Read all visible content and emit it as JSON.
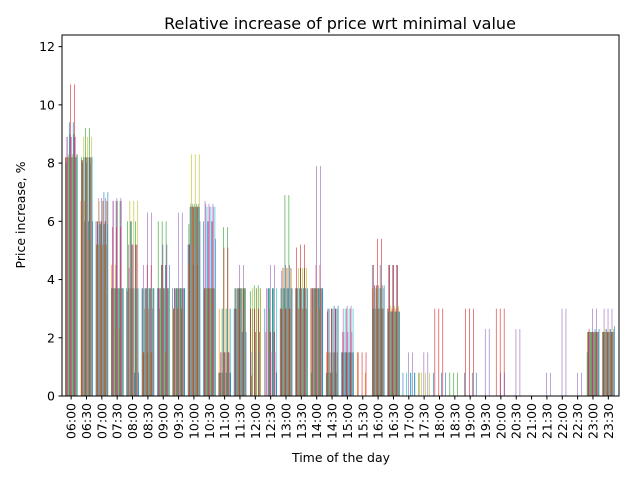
{
  "chart_data": {
    "type": "bar",
    "title": "Relative increase of price wrt minimal value",
    "xlabel": "Time of the day",
    "ylabel": "Price increase, %",
    "ylim": [
      0,
      12.4
    ],
    "y_ticks": [
      "0",
      "2",
      "4",
      "6",
      "8",
      "10",
      "12"
    ],
    "grid": false,
    "legend": "none",
    "categories": [
      "06:00",
      "06:30",
      "07:00",
      "07:30",
      "08:00",
      "08:30",
      "09:00",
      "09:30",
      "10:00",
      "10:30",
      "11:00",
      "11:30",
      "12:00",
      "12:30",
      "13:00",
      "13:30",
      "14:00",
      "14:30",
      "15:00",
      "15:30",
      "16:00",
      "16:30",
      "17:00",
      "17:30",
      "18:00",
      "18:30",
      "19:00",
      "19:30",
      "20:00",
      "20:30",
      "21:00",
      "21:30",
      "22:00",
      "22:30",
      "23:00",
      "23:30"
    ],
    "series": [
      {
        "color": "#1f77b4",
        "values": [
          8.2,
          0,
          6.0,
          3.7,
          3.7,
          3.7,
          3.7,
          3.7,
          5.2,
          6.0,
          0.8,
          3.0,
          0,
          3.0,
          3.0,
          3.7,
          3.7,
          0.8,
          1.5,
          0,
          4.5,
          3.0,
          0.8,
          0,
          0.8,
          0,
          0.8,
          0,
          0,
          0,
          0,
          0,
          0,
          0,
          1.5,
          2.2
        ]
      },
      {
        "color": "#ff7f0e",
        "values": [
          8.2,
          6.7,
          5.2,
          4.5,
          0,
          1.5,
          0,
          3.0,
          4.5,
          0,
          3.0,
          0,
          0,
          0,
          3.0,
          3.7,
          3.7,
          1.5,
          0,
          1.5,
          3.7,
          3.0,
          0,
          0.8,
          0,
          0,
          0,
          0,
          0,
          0,
          0,
          0,
          0,
          0,
          2.2,
          2.2
        ]
      },
      {
        "color": "#2ca02c",
        "values": [
          8.0,
          8.2,
          5.2,
          3.7,
          6.0,
          3.7,
          6.0,
          3.0,
          5.9,
          3.7,
          0.8,
          3.7,
          3.6,
          0,
          3.7,
          3.7,
          0.8,
          0.8,
          1.5,
          0,
          3.0,
          2.9,
          0,
          0.8,
          0,
          0.8,
          0,
          0,
          0,
          0,
          0,
          0,
          0,
          0,
          2.2,
          2.2
        ]
      },
      {
        "color": "#d62728",
        "values": [
          8.2,
          8.1,
          6.0,
          5.8,
          3.6,
          1.5,
          3.7,
          3.0,
          5.2,
          3.7,
          0.8,
          3.0,
          3.0,
          2.2,
          3.0,
          5.1,
          3.7,
          2.9,
          2.2,
          1.5,
          4.5,
          4.5,
          0,
          0,
          3.0,
          0,
          3.0,
          0,
          3.0,
          0,
          0,
          0,
          0,
          0,
          2.2,
          2.2
        ]
      },
      {
        "color": "#9467bd",
        "values": [
          8.9,
          8.0,
          5.9,
          6.7,
          5.2,
          4.5,
          3.7,
          3.7,
          5.2,
          6.7,
          1.5,
          3.7,
          1.5,
          3.7,
          4.3,
          3.7,
          3.7,
          3.0,
          3.0,
          0,
          3.0,
          4.5,
          0,
          0,
          0,
          0,
          0,
          0,
          0,
          0,
          0,
          0,
          0,
          0,
          2.2,
          3.0
        ]
      },
      {
        "color": "#8c564b",
        "values": [
          8.2,
          8.1,
          6.0,
          3.7,
          3.7,
          1.5,
          3.0,
          3.7,
          6.5,
          3.7,
          0.8,
          3.7,
          0.7,
          0,
          3.0,
          3.7,
          3.7,
          3.0,
          1.5,
          0,
          3.8,
          4.5,
          0,
          0,
          0,
          0,
          0,
          0,
          0,
          0,
          0,
          0,
          0,
          0,
          2.3,
          2.2
        ]
      },
      {
        "color": "#e377c2",
        "values": [
          8.9,
          6.7,
          6.8,
          6.7,
          4.4,
          3.7,
          3.7,
          3.6,
          5.2,
          6.6,
          1.5,
          3.0,
          0,
          3.7,
          4.4,
          3.0,
          3.7,
          1.5,
          2.2,
          0,
          3.8,
          2.9,
          0,
          0,
          0,
          0,
          0,
          0,
          0,
          0,
          0,
          0,
          0,
          0,
          2.2,
          2.2
        ]
      },
      {
        "color": "#7f7f7f",
        "values": [
          8.2,
          8.2,
          5.2,
          3.7,
          3.7,
          3.0,
          3.7,
          3.7,
          6.6,
          3.7,
          0.8,
          3.0,
          3.0,
          0,
          3.7,
          3.0,
          3.7,
          0.8,
          1.5,
          0,
          3.0,
          2.9,
          0,
          0,
          0,
          0,
          0,
          0,
          0,
          0,
          0,
          0,
          0,
          0,
          2.2,
          2.2
        ]
      },
      {
        "color": "#bcbd22",
        "values": [
          8.3,
          8.9,
          6.7,
          3.7,
          6.7,
          3.7,
          3.7,
          3.0,
          8.3,
          3.7,
          3.0,
          3.7,
          3.7,
          0,
          4.4,
          4.4,
          3.7,
          1.5,
          0,
          0,
          3.0,
          3.1,
          0,
          0.8,
          0,
          0,
          0,
          0,
          0,
          0,
          0,
          0,
          0,
          0,
          2.2,
          2.3
        ]
      },
      {
        "color": "#17becf",
        "values": [
          8.2,
          8.2,
          5.9,
          3.7,
          3.7,
          3.7,
          3.7,
          3.7,
          6.5,
          6.5,
          3.0,
          3.7,
          0,
          3.7,
          3.7,
          3.7,
          3.7,
          3.0,
          3.0,
          0,
          3.7,
          2.9,
          0.8,
          0,
          0,
          0,
          0,
          0,
          0,
          0,
          0,
          0,
          0,
          0,
          2.2,
          2.2
        ]
      },
      {
        "color": "#1f77b4",
        "values": [
          9.4,
          6.0,
          6.0,
          3.7,
          6.0,
          3.7,
          4.5,
          3.7,
          6.5,
          6.0,
          0.8,
          3.7,
          0,
          3.7,
          3.7,
          3.7,
          3.7,
          0.8,
          1.5,
          0,
          3.8,
          2.9,
          0,
          0,
          0,
          0,
          0,
          0,
          0,
          0,
          0,
          0,
          0,
          0,
          2.2,
          2.3
        ]
      },
      {
        "color": "#ff7f0e",
        "values": [
          8.2,
          6.7,
          5.2,
          4.5,
          3.7,
          3.0,
          4.5,
          3.7,
          6.5,
          3.7,
          1.5,
          3.0,
          0,
          3.0,
          3.0,
          3.0,
          3.7,
          0.8,
          0,
          0,
          3.8,
          3.0,
          0,
          0,
          0,
          0,
          0,
          0,
          0,
          0,
          0,
          0,
          0,
          0,
          2.2,
          2.2
        ]
      },
      {
        "color": "#2ca02c",
        "values": [
          9.0,
          9.2,
          5.9,
          6.7,
          6.0,
          3.7,
          6.0,
          3.7,
          6.6,
          3.7,
          5.8,
          3.7,
          3.8,
          3.7,
          6.9,
          4.4,
          3.7,
          1.5,
          1.5,
          0,
          3.7,
          2.9,
          0,
          0,
          0,
          0.8,
          0,
          0,
          0,
          0,
          0,
          0,
          0,
          0,
          2.2,
          2.2
        ]
      },
      {
        "color": "#d62728",
        "values": [
          10.7,
          8.2,
          6.0,
          5.8,
          5.2,
          4.5,
          4.5,
          3.0,
          6.5,
          6.0,
          5.1,
          3.7,
          3.0,
          2.2,
          3.0,
          5.2,
          4.5,
          3.0,
          3.0,
          1.5,
          5.4,
          4.5,
          0,
          0,
          3.0,
          0,
          3.0,
          0,
          3.0,
          0,
          0,
          0,
          0,
          0,
          2.2,
          2.2
        ]
      },
      {
        "color": "#9467bd",
        "values": [
          8.9,
          8.0,
          6.8,
          6.8,
          5.2,
          6.3,
          5.2,
          6.3,
          4.5,
          6.6,
          1.5,
          4.5,
          1.5,
          4.5,
          4.5,
          3.7,
          7.9,
          3.0,
          3.1,
          0,
          3.0,
          4.5,
          1.5,
          1.5,
          0,
          0,
          0,
          2.3,
          0.8,
          2.3,
          0,
          0.8,
          3.0,
          0.8,
          3.0,
          3.0
        ]
      },
      {
        "color": "#8c564b",
        "values": [
          8.2,
          8.2,
          6.0,
          3.7,
          3.7,
          1.5,
          3.7,
          3.7,
          6.5,
          3.7,
          1.5,
          3.7,
          2.2,
          2.2,
          3.0,
          3.7,
          3.7,
          3.0,
          1.5,
          0,
          3.8,
          4.5,
          0,
          0,
          0,
          0,
          0,
          0,
          0,
          0,
          0,
          0,
          0,
          0,
          2.2,
          2.2
        ]
      },
      {
        "color": "#e377c2",
        "values": [
          8.9,
          6.7,
          6.7,
          6.7,
          5.2,
          3.0,
          3.7,
          3.7,
          5.2,
          6.5,
          1.5,
          3.0,
          0,
          1.5,
          4.4,
          3.0,
          3.7,
          1.5,
          2.2,
          0,
          3.0,
          3.0,
          0,
          0,
          0,
          0,
          0,
          0,
          0,
          0,
          0,
          0,
          0,
          0,
          2.2,
          2.2
        ]
      },
      {
        "color": "#7f7f7f",
        "values": [
          8.2,
          8.2,
          5.2,
          3.7,
          3.7,
          3.7,
          3.7,
          3.7,
          6.6,
          3.7,
          0.8,
          3.7,
          3.7,
          0,
          3.7,
          3.0,
          3.7,
          0.8,
          1.5,
          0,
          3.0,
          2.9,
          0,
          0,
          0,
          0,
          0,
          0,
          0,
          0,
          0,
          0,
          0,
          0,
          2.2,
          2.2
        ]
      },
      {
        "color": "#bcbd22",
        "values": [
          8.3,
          8.9,
          6.7,
          3.7,
          6.7,
          3.7,
          3.7,
          3.0,
          8.3,
          3.7,
          3.0,
          3.7,
          3.7,
          0,
          4.4,
          4.4,
          3.7,
          1.5,
          0,
          0,
          3.0,
          3.1,
          0,
          0.8,
          0,
          0,
          0,
          0,
          0,
          0,
          0,
          0,
          0,
          0,
          2.2,
          2.3
        ]
      },
      {
        "color": "#17becf",
        "values": [
          8.2,
          8.2,
          5.9,
          3.7,
          3.7,
          3.7,
          3.7,
          3.7,
          6.5,
          6.5,
          3.0,
          3.7,
          0,
          3.7,
          3.7,
          3.7,
          3.7,
          3.0,
          3.0,
          0,
          3.7,
          2.9,
          0.8,
          0,
          0,
          0,
          0,
          0,
          0,
          0,
          0,
          0,
          0,
          0,
          2.2,
          2.2
        ]
      },
      {
        "color": "#1f77b4",
        "values": [
          9.4,
          6.0,
          7.0,
          3.7,
          0.8,
          3.7,
          4.5,
          3.7,
          6.5,
          6.0,
          0.8,
          2.2,
          0,
          3.7,
          3.7,
          3.7,
          3.7,
          3.1,
          1.5,
          0,
          4.5,
          2.9,
          0.8,
          0,
          0.8,
          0,
          0.8,
          0,
          0,
          0,
          0,
          0,
          0,
          0,
          2.3,
          2.3
        ]
      },
      {
        "color": "#ff7f0e",
        "values": [
          8.2,
          5.4,
          5.2,
          2.3,
          0,
          1.5,
          1.5,
          3.7,
          4.5,
          3.7,
          1.5,
          0,
          0,
          0,
          3.0,
          3.0,
          3.0,
          0,
          0,
          0.8,
          3.0,
          3.0,
          0,
          0,
          0,
          0,
          0,
          0,
          0,
          0,
          0,
          0,
          0,
          0,
          2.2,
          2.2
        ]
      },
      {
        "color": "#2ca02c",
        "values": [
          9.0,
          9.2,
          5.9,
          6.7,
          6.0,
          3.7,
          6.0,
          3.7,
          6.6,
          3.7,
          5.8,
          3.7,
          3.8,
          3.7,
          6.9,
          4.4,
          3.7,
          1.5,
          1.5,
          0,
          3.7,
          2.9,
          0,
          0,
          0,
          0.8,
          0,
          0,
          0,
          0,
          0,
          0,
          0,
          0,
          2.2,
          2.2
        ]
      },
      {
        "color": "#d62728",
        "values": [
          10.7,
          8.2,
          6.0,
          5.8,
          5.2,
          4.5,
          4.5,
          3.0,
          6.5,
          6.0,
          5.1,
          3.7,
          3.0,
          2.2,
          3.0,
          5.2,
          4.5,
          3.0,
          3.0,
          1.5,
          5.4,
          4.5,
          0,
          0,
          3.0,
          0,
          3.0,
          0,
          3.0,
          0,
          0,
          0,
          0,
          0,
          2.2,
          2.2
        ]
      },
      {
        "color": "#9467bd",
        "values": [
          8.9,
          8.0,
          6.8,
          6.8,
          5.2,
          6.3,
          5.2,
          6.3,
          4.5,
          6.6,
          1.5,
          4.5,
          1.5,
          4.5,
          4.5,
          3.7,
          7.9,
          3.0,
          3.1,
          0,
          3.0,
          4.5,
          1.5,
          1.5,
          0,
          0,
          0,
          2.3,
          0.8,
          2.3,
          0,
          0.8,
          3.0,
          0.8,
          3.0,
          3.0
        ]
      },
      {
        "color": "#8c564b",
        "values": [
          8.2,
          8.2,
          6.0,
          3.7,
          3.7,
          1.5,
          3.7,
          3.7,
          6.5,
          3.7,
          1.5,
          3.7,
          2.2,
          2.2,
          3.0,
          3.7,
          3.7,
          3.0,
          1.5,
          0,
          3.8,
          4.5,
          0,
          0,
          0,
          0,
          0,
          0,
          0,
          0,
          0,
          0,
          0,
          0,
          2.2,
          2.2
        ]
      },
      {
        "color": "#e377c2",
        "values": [
          8.9,
          6.7,
          6.7,
          6.7,
          5.2,
          3.0,
          3.7,
          3.7,
          5.2,
          6.5,
          1.5,
          3.0,
          0,
          1.5,
          4.4,
          3.0,
          3.7,
          1.5,
          2.2,
          0,
          3.0,
          3.0,
          0,
          0,
          0,
          0,
          0,
          0,
          0,
          0,
          0,
          0,
          0,
          0,
          2.2,
          2.2
        ]
      },
      {
        "color": "#7f7f7f",
        "values": [
          8.2,
          8.2,
          5.2,
          3.7,
          3.7,
          3.7,
          3.7,
          3.7,
          6.6,
          3.7,
          0.8,
          3.7,
          3.7,
          0,
          3.7,
          3.0,
          3.7,
          0.8,
          1.5,
          0,
          3.0,
          2.9,
          0,
          0,
          0,
          0,
          0,
          0,
          0,
          0,
          0,
          0,
          0,
          0,
          2.2,
          2.2
        ]
      },
      {
        "color": "#bcbd22",
        "values": [
          8.3,
          8.9,
          6.7,
          3.7,
          6.7,
          3.7,
          3.7,
          3.0,
          8.3,
          3.7,
          3.0,
          3.7,
          3.7,
          0,
          4.4,
          4.4,
          3.7,
          1.5,
          0,
          0,
          3.0,
          3.1,
          0,
          0.8,
          0,
          0,
          0,
          0,
          0,
          0,
          0,
          0,
          0,
          0,
          2.2,
          2.3
        ]
      },
      {
        "color": "#17becf",
        "values": [
          8.2,
          8.2,
          5.9,
          3.7,
          3.7,
          3.7,
          3.7,
          3.7,
          6.5,
          6.5,
          3.0,
          3.7,
          0,
          3.7,
          3.7,
          3.7,
          3.7,
          3.0,
          3.0,
          0,
          3.7,
          2.9,
          0.8,
          0,
          0,
          0,
          0,
          0,
          0,
          0,
          0,
          0,
          0,
          0,
          2.2,
          2.2
        ]
      },
      {
        "color": "#1f77b4",
        "values": [
          8.3,
          6.0,
          7.0,
          3.7,
          0.8,
          3.7,
          4.5,
          3.7,
          6.0,
          5.4,
          0.8,
          2.2,
          0,
          0.8,
          3.7,
          3.7,
          3.7,
          3.1,
          1.5,
          0,
          3.8,
          2.9,
          0.8,
          0,
          0.8,
          0,
          0.8,
          0,
          0,
          0,
          0,
          0,
          0,
          0,
          2.3,
          2.4
        ]
      }
    ]
  }
}
